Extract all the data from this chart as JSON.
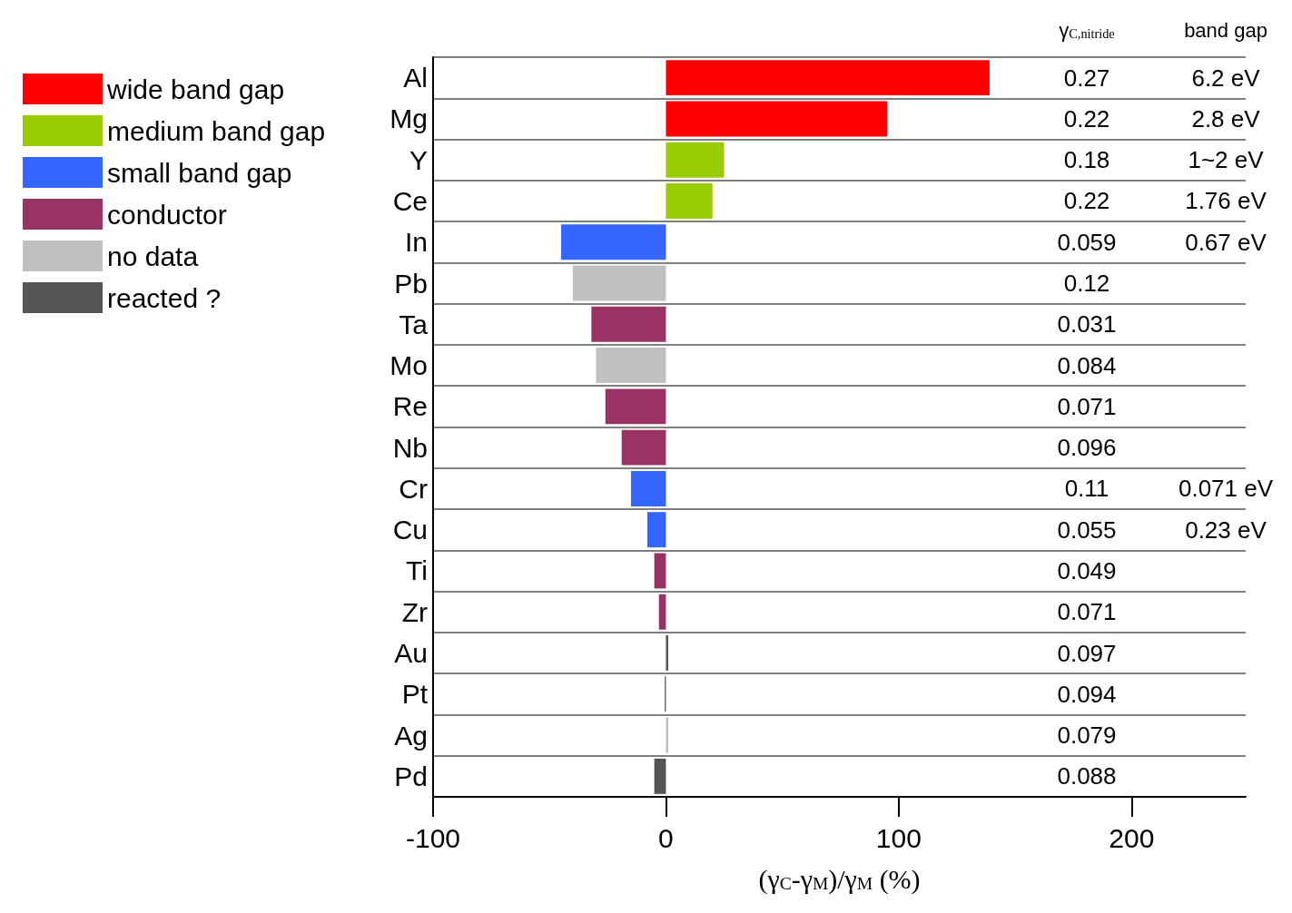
{
  "chart_data": {
    "type": "bar",
    "orientation": "horizontal",
    "stacked": true,
    "categories": [
      "Al",
      "Mg",
      "Y",
      "Ce",
      "In",
      "Pb",
      "Ta",
      "Mo",
      "Re",
      "Nb",
      "Cr",
      "Cu",
      "Ti",
      "Zr",
      "Au",
      "Pt",
      "Ag",
      "Pd"
    ],
    "series": [
      {
        "name": "wide band gap",
        "color": "#ff0000",
        "values": [
          139,
          95,
          null,
          null,
          null,
          null,
          null,
          null,
          null,
          null,
          null,
          null,
          null,
          null,
          null,
          null,
          null,
          null
        ]
      },
      {
        "name": "medium band gap",
        "color": "#99cc00",
        "values": [
          null,
          null,
          25,
          20,
          null,
          null,
          null,
          null,
          null,
          null,
          null,
          null,
          null,
          null,
          null,
          null,
          null,
          null
        ]
      },
      {
        "name": "small band gap",
        "color": "#3366ff",
        "values": [
          null,
          null,
          null,
          null,
          -45,
          null,
          null,
          null,
          null,
          null,
          -15,
          -8,
          null,
          null,
          null,
          null,
          null,
          null
        ]
      },
      {
        "name": "conductor",
        "color": "#993366",
        "values": [
          null,
          null,
          null,
          null,
          null,
          null,
          -32,
          null,
          -26,
          -19,
          null,
          null,
          -5,
          -3,
          null,
          null,
          null,
          null
        ]
      },
      {
        "name": "no data",
        "color": "#c0c0c0",
        "values": [
          null,
          null,
          null,
          null,
          null,
          -40,
          null,
          -30,
          null,
          null,
          null,
          null,
          null,
          null,
          null,
          null,
          1,
          null
        ]
      },
      {
        "name": "reacted ?",
        "color": "#555555",
        "values": [
          null,
          null,
          null,
          null,
          null,
          null,
          null,
          null,
          null,
          null,
          null,
          null,
          null,
          null,
          1,
          -0.5,
          null,
          -5
        ]
      }
    ],
    "xlim": [
      -100,
      249
    ],
    "xticks": [
      -100,
      0,
      100,
      200
    ],
    "xlabel": "(γ$_{C}$-γ$_{M}$)/γ$_{M}$ (%)",
    "grid": "y",
    "legend": "left",
    "annotations": [
      "γ$_{C,nitride}$",
      "0.27\n0.22\n0.18\n0.22\n0.059\n0.12\n0.031\n0.084\n0.071\n0.096\n0.11\n0.055\n0.049\n0.071\n0.097\n0.094\n0.079\n0.088",
      "band gap",
      "6.2 eV\n2.8 eV\n1~2 eV\n1.76 eV\n0.67 eV\n\n\n\n\n\n0.071 eV\n0.23 eV"
    ]
  }
}
